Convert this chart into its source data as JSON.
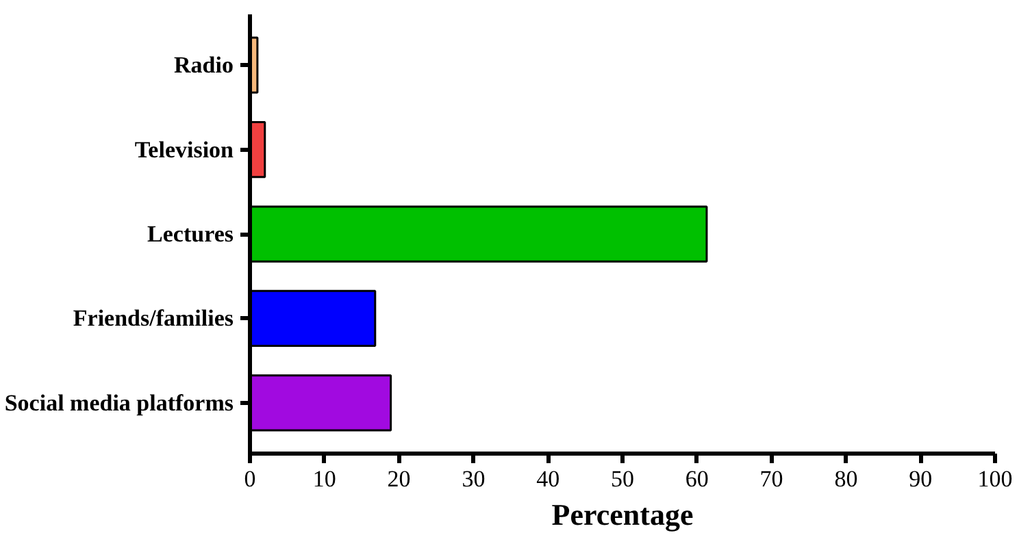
{
  "chart_data": {
    "type": "bar",
    "orientation": "horizontal",
    "xlabel": "Percentage",
    "categories": [
      "Radio",
      "Television",
      "Lectures",
      "Friends/families",
      "Social media platforms"
    ],
    "values": [
      1,
      2,
      61.3,
      16.8,
      18.9
    ],
    "colors": [
      "#f5b87c",
      "#f04040",
      "#00c000",
      "#0000ff",
      "#a10ae0"
    ],
    "xlim": [
      0,
      100
    ],
    "xticks": [
      0,
      10,
      20,
      30,
      40,
      50,
      60,
      70,
      80,
      90,
      100
    ],
    "grid": false
  }
}
